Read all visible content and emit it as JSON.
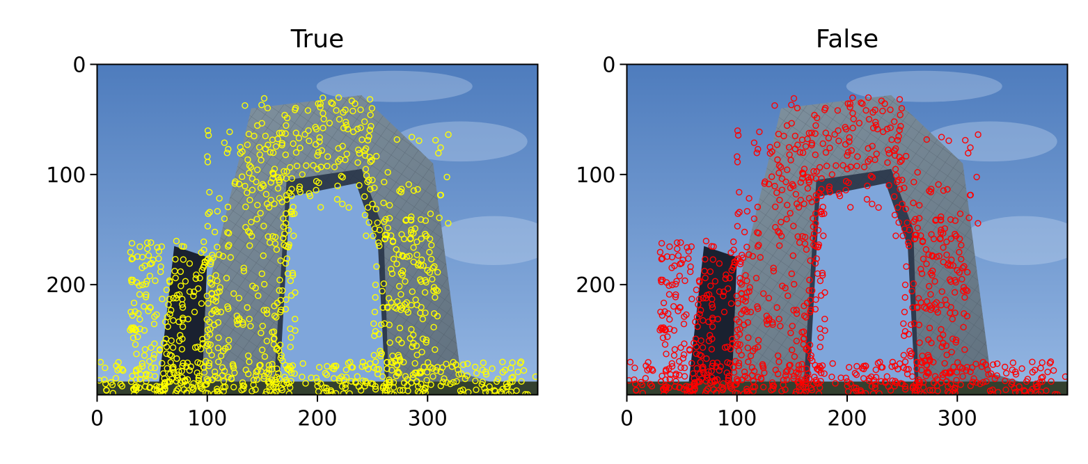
{
  "chart_data": [
    {
      "type": "scatter",
      "title": "True",
      "xlabel": "",
      "ylabel": "",
      "xlim": [
        0,
        400
      ],
      "ylim": [
        300,
        0
      ],
      "xticks": [
        0,
        100,
        200,
        300
      ],
      "yticks": [
        0,
        100,
        200
      ],
      "marker_color": "#ffff00",
      "marker": "open-circle",
      "note_points": "Dense keypoints over building edges and ground, approx 1100",
      "background": "photo-of-building-arch-against-blue-sky"
    },
    {
      "type": "scatter",
      "title": "False",
      "xlabel": "",
      "ylabel": "",
      "xlim": [
        0,
        400
      ],
      "ylim": [
        300,
        0
      ],
      "xticks": [
        0,
        100,
        200,
        300
      ],
      "yticks": [
        0,
        100,
        200
      ],
      "marker_color": "#ff0000",
      "marker": "open-circle",
      "background": "photo-of-building-arch-against-blue-sky"
    }
  ],
  "colors": {
    "sky_top": "#4f7fbf",
    "sky_bottom": "#8fb3e0",
    "building": "#6d7f8e",
    "building_dark": "#1e2533",
    "ground": "#2d3a2a"
  }
}
